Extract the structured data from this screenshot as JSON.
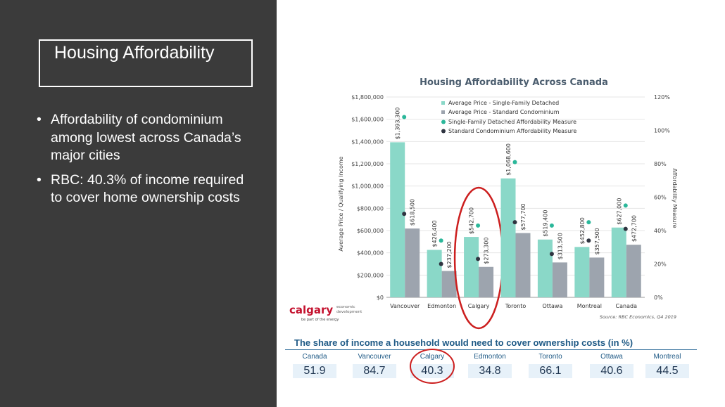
{
  "slide": {
    "title": "Housing Affordability",
    "bullets": [
      {
        "symbol": "•",
        "text": "Affordability of condominium among lowest across Canada’s major cities"
      },
      {
        "symbol": "•",
        "text": "RBC: 40.3% of income required to cover home ownership costs"
      }
    ]
  },
  "logo": {
    "name": "calgary",
    "line1": "economic",
    "line2": "development",
    "tagline": "be part of the energy"
  },
  "chart_data": {
    "type": "bar",
    "title": "Housing Affordability Across Canada",
    "ylabel": "Average Price / Qualifying Income",
    "y2label": "Affordability Measure",
    "ylim": [
      0,
      1800000
    ],
    "y2lim": [
      0,
      120
    ],
    "yticks": [
      "$0",
      "$200,000",
      "$400,000",
      "$600,000",
      "$800,000",
      "$1,000,000",
      "$1,200,000",
      "$1,400,000",
      "$1,600,000",
      "$1,800,000"
    ],
    "y2ticks": [
      "0%",
      "20%",
      "40%",
      "60%",
      "80%",
      "100%",
      "120%"
    ],
    "categories": [
      "Vancouver",
      "Edmonton",
      "Calgary",
      "Toronto",
      "Ottawa",
      "Montreal",
      "Canada"
    ],
    "series": [
      {
        "name": "Average Price - Single-Family Detached",
        "kind": "bar",
        "color": "#8ad8c8",
        "values": [
          1393300,
          426400,
          542700,
          1068600,
          519400,
          452800,
          627000
        ],
        "labels": [
          "$1,393,300",
          "$426,400",
          "$542,700",
          "$1,068,600",
          "$519,400",
          "$452,800",
          "$627,000"
        ]
      },
      {
        "name": "Average Price - Standard Condominium",
        "kind": "bar",
        "color": "#9da4ae",
        "values": [
          618500,
          237200,
          273300,
          577700,
          313500,
          357500,
          472700
        ],
        "labels": [
          "$618,500",
          "$237,200",
          "$273,300",
          "$577,700",
          "$313,500",
          "$357,500",
          "$472,700"
        ]
      },
      {
        "name": "Single-Family Detached Affordability Measure",
        "kind": "marker",
        "axis": "right",
        "color": "#2bb79a",
        "values": [
          108,
          34,
          43,
          81,
          43,
          45,
          55
        ]
      },
      {
        "name": "Standard Condominium Affordability Measure",
        "kind": "marker",
        "axis": "right",
        "color": "#2f3440",
        "values": [
          50,
          20,
          23,
          45,
          26,
          34,
          41
        ]
      }
    ],
    "highlight": "Calgary",
    "source": "Source: RBC Economics, Q4 2019"
  },
  "share": {
    "title": "The share of income a household would need to cover ownership costs (in %)",
    "items": [
      {
        "city": "Canada",
        "value": "51.9"
      },
      {
        "city": "Vancouver",
        "value": "84.7"
      },
      {
        "city": "Calgary",
        "value": "40.3"
      },
      {
        "city": "Edmonton",
        "value": "34.8"
      },
      {
        "city": "Toronto",
        "value": "66.1"
      },
      {
        "city": "Ottawa",
        "value": "40.6"
      },
      {
        "city": "Montreal",
        "value": "44.5"
      }
    ]
  },
  "colors": {
    "panel": "#3b3b3b",
    "accent": "#1f5a86",
    "highlight": "#cc1f1f",
    "logo": "#c4122f"
  }
}
